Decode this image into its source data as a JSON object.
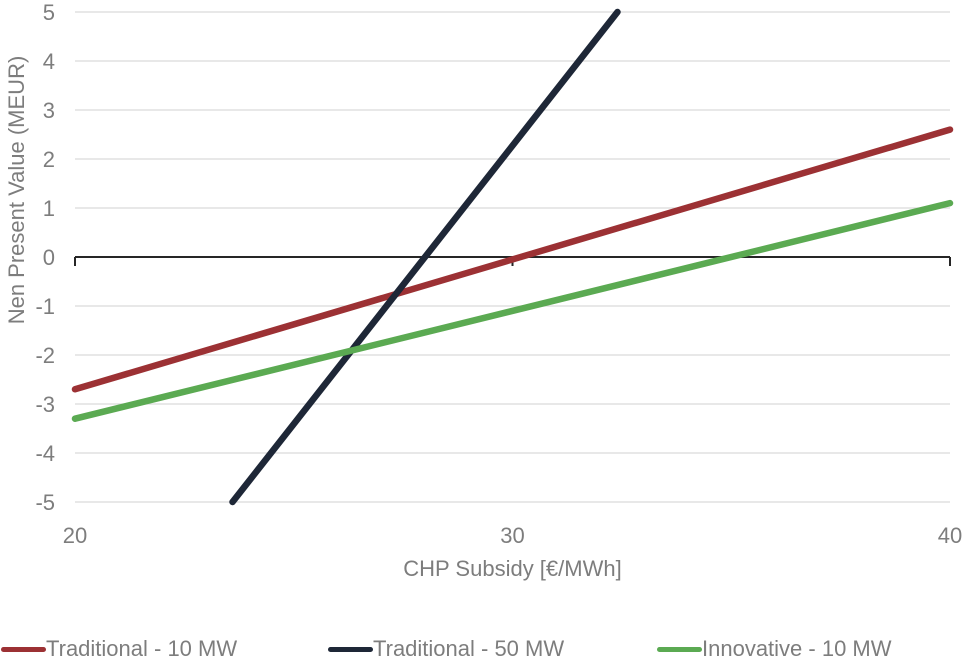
{
  "chart_data": {
    "type": "line",
    "title": "",
    "xlabel": "CHP Subsidy [€/MWh]",
    "ylabel": "Nen Present Value (MEUR)",
    "xlim": [
      20,
      40
    ],
    "ylim": [
      -5,
      5
    ],
    "xticks": [
      20,
      30,
      40
    ],
    "yticks": [
      5,
      4,
      3,
      2,
      1,
      0,
      -1,
      -2,
      -3,
      -4,
      -5
    ],
    "grid": "horizontal-only",
    "axis_line_at_y": 0,
    "legend_position": "bottom",
    "series": [
      {
        "name": "Traditional - 10 MW",
        "color": "#9c3134",
        "points": [
          [
            20,
            -2.7
          ],
          [
            40,
            2.6
          ]
        ],
        "zero_crossing_x": 30.2
      },
      {
        "name": "Traditional - 50 MW",
        "color": "#1e2737",
        "points": [
          [
            23.6,
            -5.0
          ],
          [
            32.4,
            5.0
          ]
        ],
        "zero_crossing_x": 28.0
      },
      {
        "name": "Innovative - 10 MW",
        "color": "#5baa52",
        "points": [
          [
            20,
            -3.3
          ],
          [
            40,
            1.1
          ]
        ],
        "zero_crossing_x": 35.0
      }
    ]
  }
}
